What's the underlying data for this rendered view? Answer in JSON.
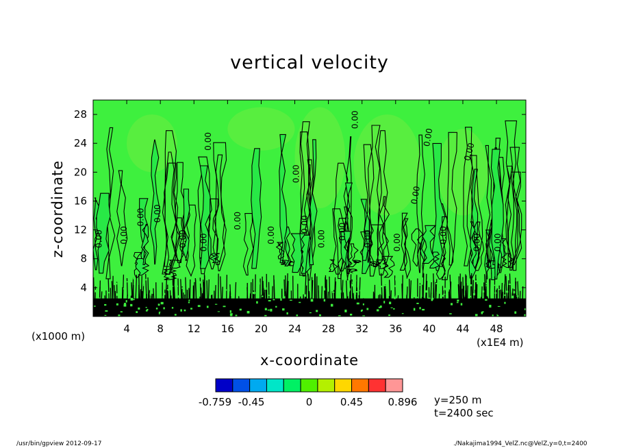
{
  "chart_data": {
    "type": "heatmap",
    "title": "vertical velocity",
    "xlabel": "x-coordinate",
    "ylabel": "z-coordinate",
    "x_ticks": [
      "4",
      "8",
      "12",
      "16",
      "20",
      "24",
      "28",
      "32",
      "36",
      "40",
      "44",
      "48"
    ],
    "y_ticks": [
      "4",
      "8",
      "12",
      "16",
      "20",
      "24",
      "28"
    ],
    "x_unit": "(x1E4 m)",
    "y_unit": "(x1000 m)",
    "xlim": [
      0,
      51.5
    ],
    "ylim": [
      0,
      30
    ],
    "contour_label": "0.00",
    "colorbar": {
      "colors": [
        "#0000c8",
        "#0050e6",
        "#00aaf0",
        "#00e6c8",
        "#00f064",
        "#50f000",
        "#b4f000",
        "#ffd700",
        "#ff7800",
        "#ff3232",
        "#ff9696"
      ],
      "tick_labels": [
        "-0.759",
        "-0.45",
        "0",
        "0.45",
        "0.896"
      ],
      "tick_values": [
        -0.759,
        -0.45,
        0,
        0.45,
        0.896
      ]
    },
    "info": [
      "y=250 m",
      "t=2400 sec"
    ]
  },
  "footer": {
    "left": "/usr/bin/gpview   2012-09-17",
    "right": "./Nakajima1994_VelZ.nc@VelZ,y=0,t=2400"
  },
  "colors": {
    "green_bg": "#3ef03e",
    "green_light": "#5fee40",
    "green_mid": "#28e846",
    "contour": "#000000"
  }
}
